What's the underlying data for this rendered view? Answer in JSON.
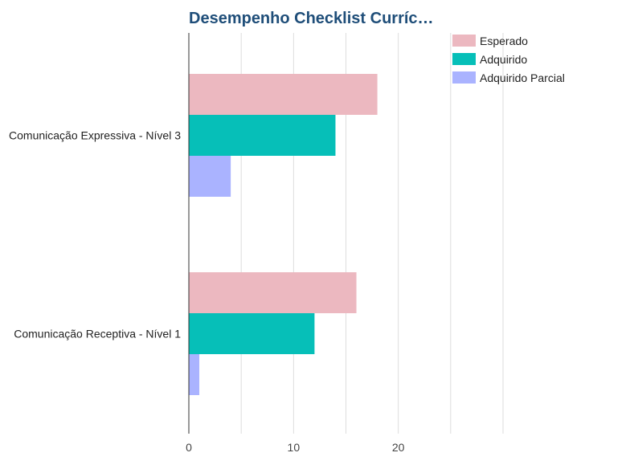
{
  "chart_data": {
    "type": "bar",
    "orientation": "horizontal",
    "title": "Desempenho Checklist Curríc…",
    "categories": [
      "Comunicação Expressiva - Nível 3",
      "Comunicação Receptiva - Nível 1"
    ],
    "series": [
      {
        "name": "Esperado",
        "values": [
          18,
          16
        ],
        "color": "#ecb8c0"
      },
      {
        "name": "Adquirido",
        "values": [
          14,
          12
        ],
        "color": "#06bfb8"
      },
      {
        "name": "Adquirido Parcial",
        "values": [
          4,
          1
        ],
        "color": "#aab3ff"
      }
    ],
    "x_ticks": [
      "0",
      "10",
      "20"
    ],
    "xlim": [
      0,
      30
    ],
    "grid": true,
    "legend": "top-right"
  }
}
